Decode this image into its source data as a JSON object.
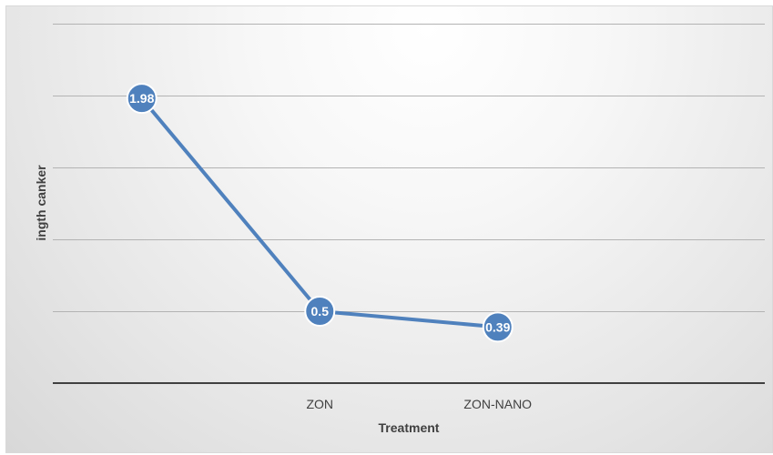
{
  "chart_data": {
    "type": "line",
    "categories": [
      "",
      "ZON",
      "ZON-NANO"
    ],
    "series": [
      {
        "values": [
          1.98,
          0.5,
          0.39
        ],
        "data_labels": [
          "1.98",
          "0.5",
          "0.39"
        ]
      }
    ],
    "xlabel": "Treatment",
    "ylabel": "ingth canker",
    "ylim": [
      0,
      2.5
    ],
    "y_grid_step": 0.5,
    "grid": true,
    "y_tick_labels_visible": false,
    "colors": {
      "line": "#4f81bd",
      "marker": "#4f81bd",
      "marker_edge": "#ffffff",
      "gridline": "#b3b3b3",
      "baseline": "#404040"
    }
  }
}
